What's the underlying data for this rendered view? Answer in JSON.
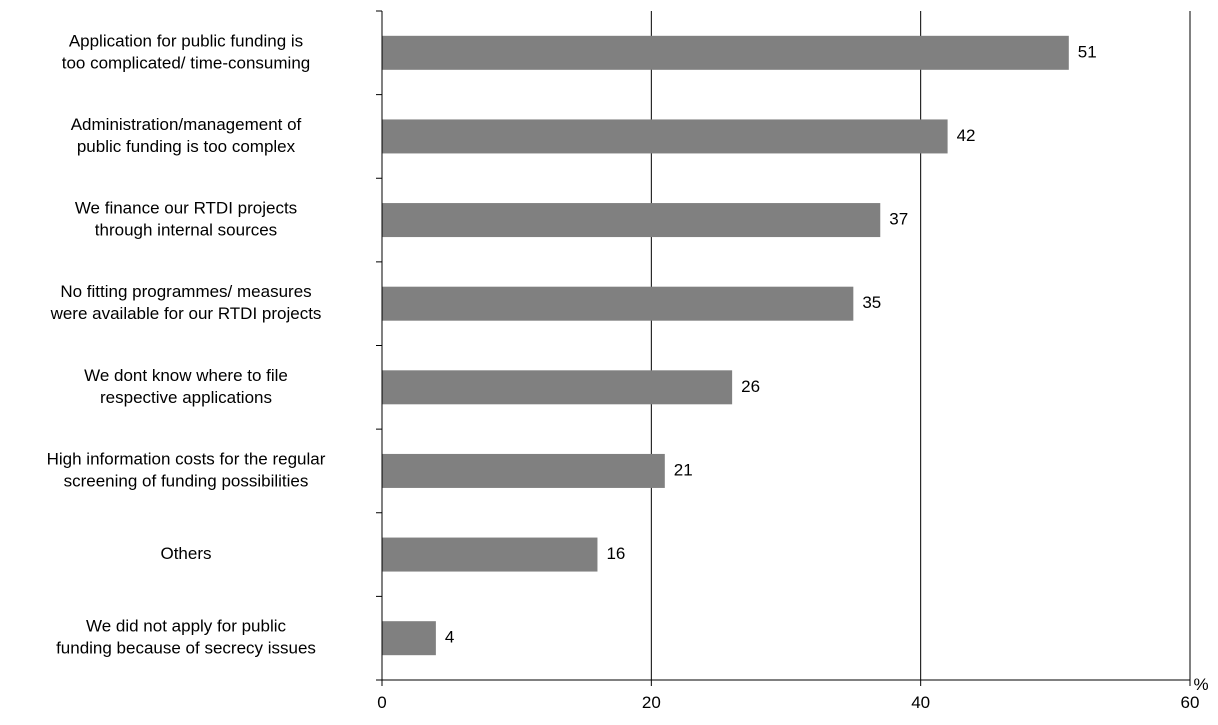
{
  "chart_data": {
    "type": "bar",
    "orientation": "horizontal",
    "title": "",
    "xlabel": "",
    "ylabel": "",
    "x_unit": "%",
    "xlim": [
      0,
      60
    ],
    "x_ticks": [
      0,
      20,
      40,
      60
    ],
    "grid": true,
    "bar_color": "#808080",
    "categories": [
      [
        "Application for public funding is",
        "too complicated/ time-consuming"
      ],
      [
        "Administration/management of",
        "public funding is too complex"
      ],
      [
        "We finance our RTDI projects",
        "through internal sources"
      ],
      [
        "No fitting programmes/ measures",
        "were available for our RTDI projects"
      ],
      [
        "We dont know where to file",
        "respective applications"
      ],
      [
        "High information costs for the regular",
        "screening of funding possibilities"
      ],
      [
        "Others"
      ],
      [
        "We did not apply for public",
        "funding because of secrecy issues"
      ]
    ],
    "values": [
      51,
      42,
      37,
      35,
      26,
      21,
      16,
      4
    ]
  }
}
